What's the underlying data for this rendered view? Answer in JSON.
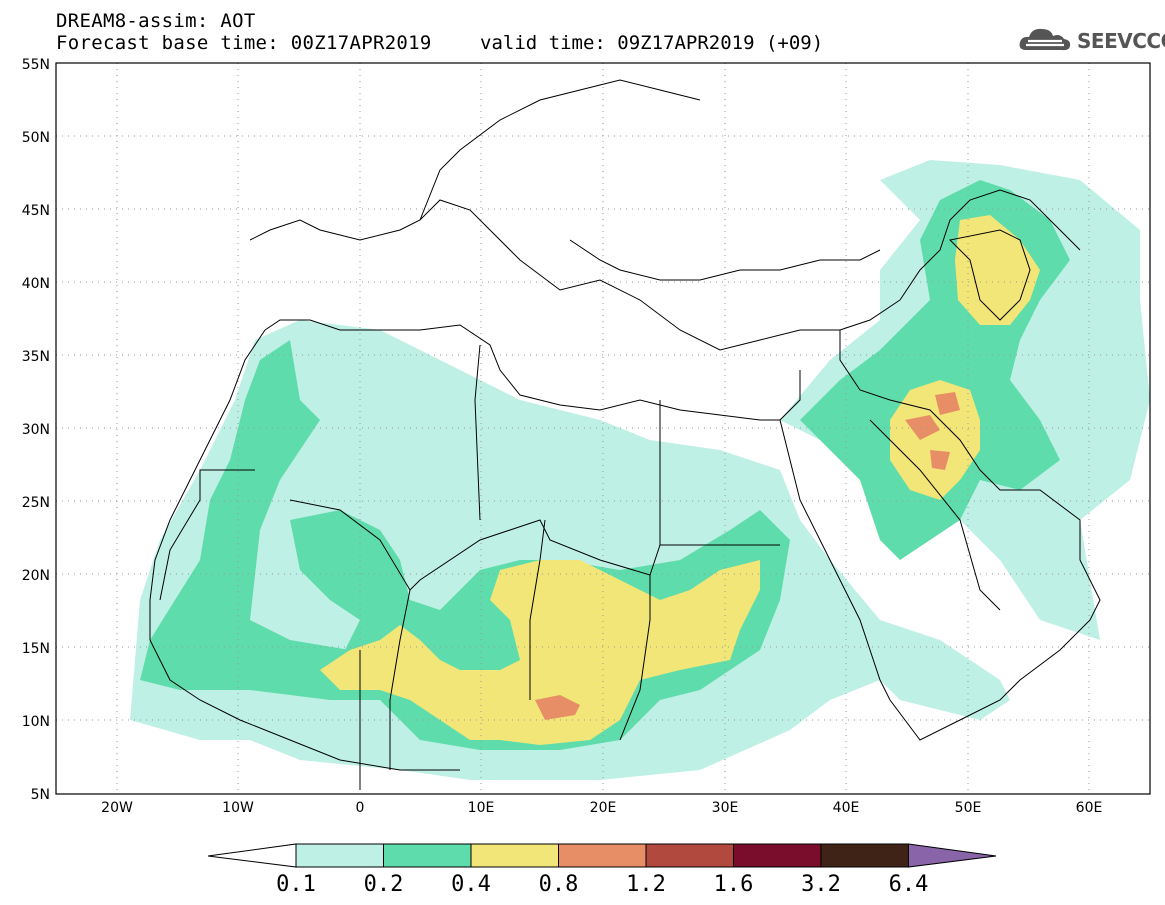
{
  "title": {
    "line1": "DREAM8-assim: AOT",
    "base_time": "Forecast base time: 00Z17APR2019",
    "valid_time": "valid time: 09Z17APR2019 (+09)"
  },
  "logo": {
    "text": "SEEVCCC",
    "icon": "cloud-icon"
  },
  "map": {
    "region": "North Africa, Europe, Middle East",
    "lat_labels": [
      "5N",
      "10N",
      "15N",
      "20N",
      "25N",
      "30N",
      "35N",
      "40N",
      "45N",
      "50N",
      "55N"
    ],
    "lon_labels": [
      "20W",
      "10W",
      "0",
      "10E",
      "20E",
      "30E",
      "40E",
      "50E",
      "60E"
    ],
    "lat_range": [
      5,
      55
    ],
    "lon_range": [
      -25,
      65
    ],
    "grid": "dotted"
  },
  "colorbar": {
    "labels": [
      "0.1",
      "0.2",
      "0.4",
      "0.8",
      "1.2",
      "1.6",
      "3.2",
      "6.4"
    ],
    "colors": [
      "#ffffff",
      "#bff0e6",
      "#5fdcab",
      "#f2e678",
      "#e88e66",
      "#b2493e",
      "#7a0d2b",
      "#3e2316",
      "#8a64a8"
    ]
  }
}
